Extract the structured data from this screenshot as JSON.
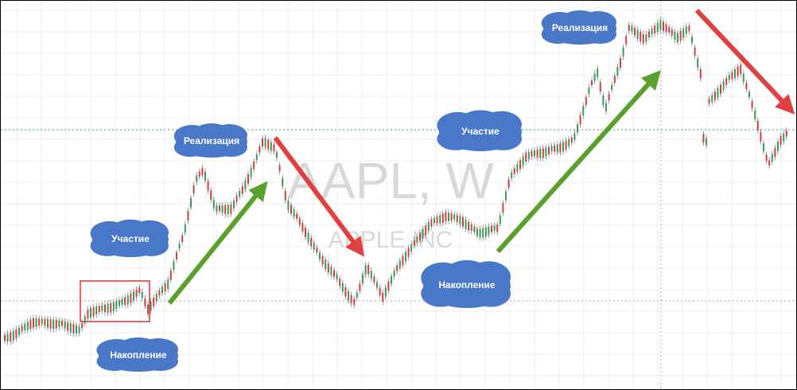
{
  "watermark": {
    "symbol": "AAPL, W",
    "company": "APPLE INC"
  },
  "annotations": [
    {
      "label": "Накопление"
    },
    {
      "label": "Участие"
    },
    {
      "label": "Реализация"
    },
    {
      "label": "Накопление"
    },
    {
      "label": "Участие"
    },
    {
      "label": "Реализация"
    }
  ]
}
